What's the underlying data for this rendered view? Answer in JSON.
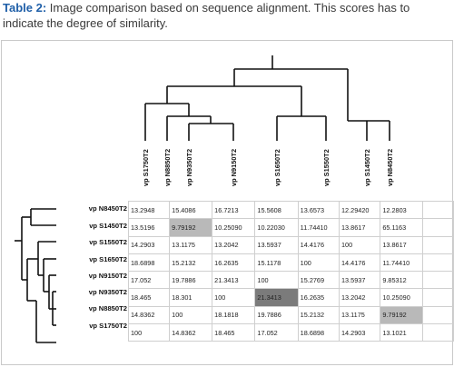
{
  "caption": {
    "label": "Table 2:",
    "text": "Image comparison based on sequence alignment. This scores has to indicate the degree of similarity."
  },
  "columns": [
    "vp S1750T2",
    "vp N8850T2",
    "vp N9350T2",
    "vp N9150T2",
    "vp S1650T2",
    "vp S1550T2",
    "vp S1450T2",
    "vp N8450T2"
  ],
  "rows": [
    {
      "label": "vp N8450T2",
      "cells": [
        "13.2948",
        "15.4086",
        "16.7213",
        "15.5608",
        "13.6573",
        "12.29420",
        "12.2803",
        ""
      ]
    },
    {
      "label": "vp S1450T2",
      "cells": [
        "13.5196",
        "9.79192",
        "10.25090",
        "10.22030",
        "11.74410",
        "13.8617",
        "65.1163",
        ""
      ]
    },
    {
      "label": "vp S1550T2",
      "cells": [
        "14.2903",
        "13.1175",
        "13.2042",
        "13.5937",
        "14.4176",
        "100",
        "13.8617",
        ""
      ]
    },
    {
      "label": "vp S1650T2",
      "cells": [
        "18.6898",
        "15.2132",
        "16.2635",
        "15.1178",
        "100",
        "14.4176",
        "11.74410",
        ""
      ]
    },
    {
      "label": "vp N9150T2",
      "cells": [
        "17.052",
        "19.7886",
        "21.3413",
        "100",
        "15.2769",
        "13.5937",
        "9.85312",
        ""
      ]
    },
    {
      "label": "vp N9350T2",
      "cells": [
        "18.465",
        "18.301",
        "100",
        "21.3413",
        "16.2635",
        "13.2042",
        "10.25090",
        ""
      ]
    },
    {
      "label": "vp N8850T2",
      "cells": [
        "14.8362",
        "100",
        "18.1818",
        "19.7886",
        "15.2132",
        "13.1175",
        "9.79192",
        ""
      ]
    },
    {
      "label": "vp S1750T2",
      "cells": [
        "100",
        "14.8362",
        "18.465",
        "17.052",
        "18.6898",
        "14.2903",
        "13.1021",
        ""
      ]
    }
  ],
  "highlights": [
    {
      "row": 1,
      "col": 1,
      "shade": "light"
    },
    {
      "row": 5,
      "col": 3,
      "shade": "dark"
    },
    {
      "row": 6,
      "col": 6,
      "shade": "light"
    }
  ],
  "colors": {
    "caption_label": "#1f5fa8",
    "highlight_light": "#b9b9b9",
    "highlight_dark": "#7b7b7b",
    "grid": "#cfcfcf"
  }
}
